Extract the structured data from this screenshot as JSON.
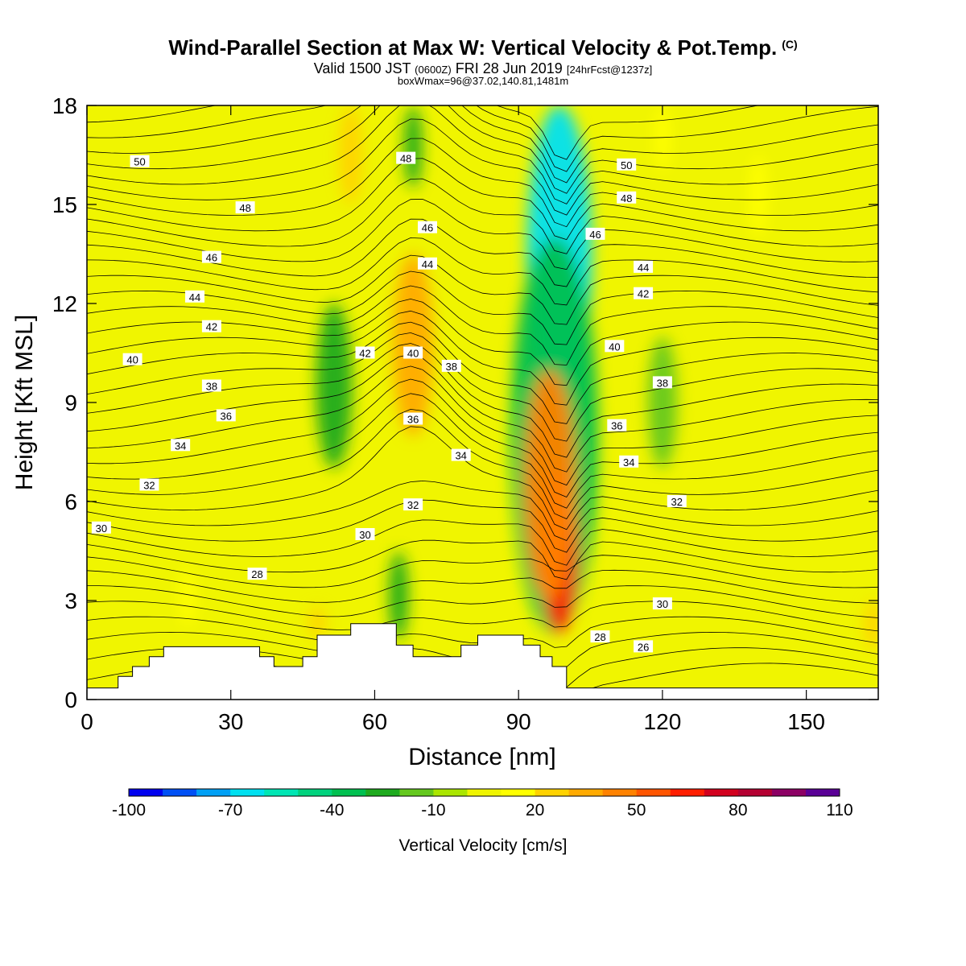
{
  "header": {
    "title": "Wind-Parallel Section at Max W: Vertical Velocity & Pot.Temp.",
    "title_mark": "(C)",
    "valid_a": "Valid 1500 JST",
    "valid_b": "(0600Z)",
    "valid_c": "FRI 28 Jun 2019",
    "valid_d": "[24hrFcst@1237z]",
    "box_info": "boxWmax=96@37.02,140.81,1481m"
  },
  "chart_data": {
    "type": "heatmap",
    "xlabel": "Distance [nm]",
    "ylabel": "Height [Kft MSL]",
    "xlim": [
      0,
      165
    ],
    "ylim": [
      0,
      18
    ],
    "x_ticks": [
      0,
      30,
      60,
      90,
      120,
      150
    ],
    "y_ticks": [
      0,
      3,
      6,
      9,
      12,
      15,
      18
    ],
    "colorbar": {
      "label": "Vertical Velocity [cm/s]",
      "tick_labels": [
        "-100",
        "-70",
        "-40",
        "-10",
        "20",
        "50",
        "80",
        "110"
      ],
      "tick_values": [
        -100,
        -70,
        -40,
        -10,
        20,
        50,
        80,
        110
      ],
      "colors": [
        "#0000f0",
        "#0050f5",
        "#00a0f5",
        "#00e0f0",
        "#00e6b4",
        "#00d27d",
        "#00c050",
        "#1eaa1e",
        "#64c81e",
        "#aae600",
        "#f0f500",
        "#ffff00",
        "#ffd200",
        "#ffaa00",
        "#ff8200",
        "#ff5500",
        "#ff1e00",
        "#d2001e",
        "#b40032",
        "#8c0064",
        "#5a0096"
      ]
    },
    "background_w": 5,
    "velocity_features": [
      {
        "label": "downdraft core",
        "x": 98.5,
        "y_min": 9.0,
        "y_max": 18.0,
        "w": -70
      },
      {
        "label": "downdraft",
        "x": 97.5,
        "y_min": 2.0,
        "y_max": 14.0,
        "w": -35
      },
      {
        "label": "updraft core",
        "x": 98.5,
        "y_min": 2.0,
        "y_max": 7.0,
        "w": 65
      },
      {
        "label": "updraft",
        "x": 96.5,
        "y_min": 3.0,
        "y_max": 10.0,
        "w": 40
      },
      {
        "label": "updraft",
        "x": 68,
        "y_min": 8.0,
        "y_max": 13.5,
        "w": 30
      },
      {
        "label": "updraft",
        "x": 55,
        "y_min": 15.0,
        "y_max": 18.0,
        "w": 28
      },
      {
        "label": "downdraft",
        "x": 51.5,
        "y_min": 7.0,
        "y_max": 12.0,
        "w": -25
      },
      {
        "label": "downdraft",
        "x": 65,
        "y_min": 1.8,
        "y_max": 4.5,
        "w": -30
      },
      {
        "label": "downdraft",
        "x": 68,
        "y_min": 15.5,
        "y_max": 18.0,
        "w": -25
      },
      {
        "label": "downdraft",
        "x": 120,
        "y_min": 7.0,
        "y_max": 11.0,
        "w": -15
      },
      {
        "label": "updraft",
        "x": 21,
        "y_min": 2.2,
        "y_max": 4.0,
        "w": 18
      },
      {
        "label": "updraft",
        "x": 48,
        "y_min": 1.9,
        "y_max": 2.8,
        "w": 20
      },
      {
        "label": "updraft",
        "x": 164,
        "y_min": 1.5,
        "y_max": 3.0,
        "w": 22
      },
      {
        "label": "updraft",
        "x": 140,
        "y_min": 14.0,
        "y_max": 16.5,
        "w": 15
      },
      {
        "label": "updraft",
        "x": 120,
        "y_min": 16.0,
        "y_max": 18.0,
        "w": 12
      }
    ],
    "terrain": [
      [
        0,
        0.35
      ],
      [
        6.5,
        0.35
      ],
      [
        6.5,
        0.7
      ],
      [
        9.5,
        0.7
      ],
      [
        9.5,
        1.0
      ],
      [
        13,
        1.0
      ],
      [
        13,
        1.3
      ],
      [
        16,
        1.3
      ],
      [
        16,
        1.6
      ],
      [
        36,
        1.6
      ],
      [
        36,
        1.3
      ],
      [
        39,
        1.3
      ],
      [
        39,
        1.0
      ],
      [
        45,
        1.0
      ],
      [
        45,
        1.3
      ],
      [
        48,
        1.3
      ],
      [
        48,
        1.95
      ],
      [
        55,
        1.95
      ],
      [
        55,
        2.3
      ],
      [
        64.5,
        2.3
      ],
      [
        64.5,
        1.65
      ],
      [
        68,
        1.65
      ],
      [
        68,
        1.3
      ],
      [
        78,
        1.3
      ],
      [
        78,
        1.65
      ],
      [
        81.5,
        1.65
      ],
      [
        81.5,
        1.95
      ],
      [
        91,
        1.95
      ],
      [
        91,
        1.65
      ],
      [
        94.5,
        1.65
      ],
      [
        94.5,
        1.3
      ],
      [
        97,
        1.3
      ],
      [
        97,
        1.0
      ],
      [
        100,
        1.0
      ],
      [
        100,
        0.35
      ],
      [
        165,
        0.35
      ]
    ],
    "isentrope_labels": [
      {
        "text": "50",
        "x": 11,
        "y": 16.3
      },
      {
        "text": "48",
        "x": 33,
        "y": 14.9
      },
      {
        "text": "46",
        "x": 26,
        "y": 13.4
      },
      {
        "text": "44",
        "x": 22.5,
        "y": 12.2
      },
      {
        "text": "42",
        "x": 26,
        "y": 11.3
      },
      {
        "text": "40",
        "x": 9.5,
        "y": 10.3
      },
      {
        "text": "38",
        "x": 26,
        "y": 9.5
      },
      {
        "text": "36",
        "x": 29,
        "y": 8.6
      },
      {
        "text": "34",
        "x": 19.5,
        "y": 7.7
      },
      {
        "text": "32",
        "x": 13,
        "y": 6.5
      },
      {
        "text": "30",
        "x": 3,
        "y": 5.2
      },
      {
        "text": "28",
        "x": 35.5,
        "y": 3.8
      },
      {
        "text": "48",
        "x": 66.5,
        "y": 16.4
      },
      {
        "text": "46",
        "x": 71,
        "y": 14.3
      },
      {
        "text": "44",
        "x": 71,
        "y": 13.2
      },
      {
        "text": "42",
        "x": 58,
        "y": 10.5
      },
      {
        "text": "40",
        "x": 68,
        "y": 10.5
      },
      {
        "text": "38",
        "x": 76,
        "y": 10.1
      },
      {
        "text": "36",
        "x": 68,
        "y": 8.5
      },
      {
        "text": "34",
        "x": 78,
        "y": 7.4
      },
      {
        "text": "32",
        "x": 68,
        "y": 5.9
      },
      {
        "text": "30",
        "x": 58,
        "y": 5.0
      },
      {
        "text": "50",
        "x": 112.5,
        "y": 16.2
      },
      {
        "text": "48",
        "x": 112.5,
        "y": 15.2
      },
      {
        "text": "46",
        "x": 106,
        "y": 14.1
      },
      {
        "text": "44",
        "x": 116,
        "y": 13.1
      },
      {
        "text": "42",
        "x": 116,
        "y": 12.3
      },
      {
        "text": "40",
        "x": 110,
        "y": 10.7
      },
      {
        "text": "38",
        "x": 120,
        "y": 9.6
      },
      {
        "text": "36",
        "x": 110.5,
        "y": 8.3
      },
      {
        "text": "34",
        "x": 113,
        "y": 7.2
      },
      {
        "text": "32",
        "x": 123,
        "y": 6.0
      },
      {
        "text": "30",
        "x": 120,
        "y": 2.9
      },
      {
        "text": "28",
        "x": 107,
        "y": 1.9
      },
      {
        "text": "26",
        "x": 116,
        "y": 1.6
      }
    ]
  }
}
